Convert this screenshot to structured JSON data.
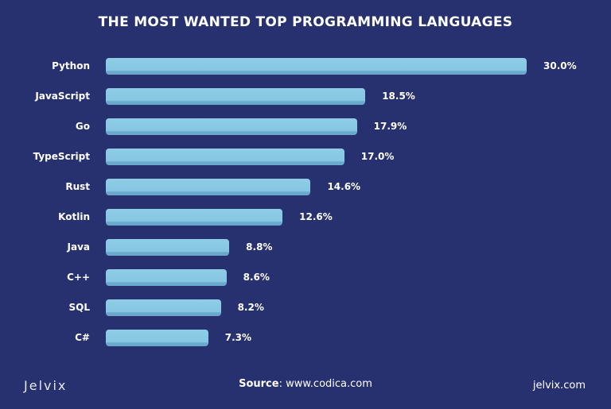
{
  "chart_data": {
    "type": "bar",
    "orientation": "horizontal",
    "title": "THE MOST WANTED TOP PROGRAMMING LANGUAGES",
    "categories": [
      "Python",
      "JavaScript",
      "Go",
      "TypeScript",
      "Rust",
      "Kotlin",
      "Java",
      "C++",
      "SQL",
      "C#"
    ],
    "values": [
      30.0,
      18.5,
      17.9,
      17.0,
      14.6,
      12.6,
      8.8,
      8.6,
      8.2,
      7.3
    ],
    "value_labels": [
      "30.0%",
      "18.5%",
      "17.9%",
      "17.0%",
      "14.6%",
      "12.6%",
      "8.8%",
      "8.6%",
      "8.2%",
      "7.3%"
    ],
    "xlim": [
      0,
      30
    ],
    "grid": false,
    "colors": {
      "bar": "#86c6e2",
      "background": "#27316f"
    }
  },
  "footer": {
    "logo": "Jelvix",
    "source_label": "Source",
    "source_value": ": www.codica.com",
    "site": "jelvix.com"
  }
}
